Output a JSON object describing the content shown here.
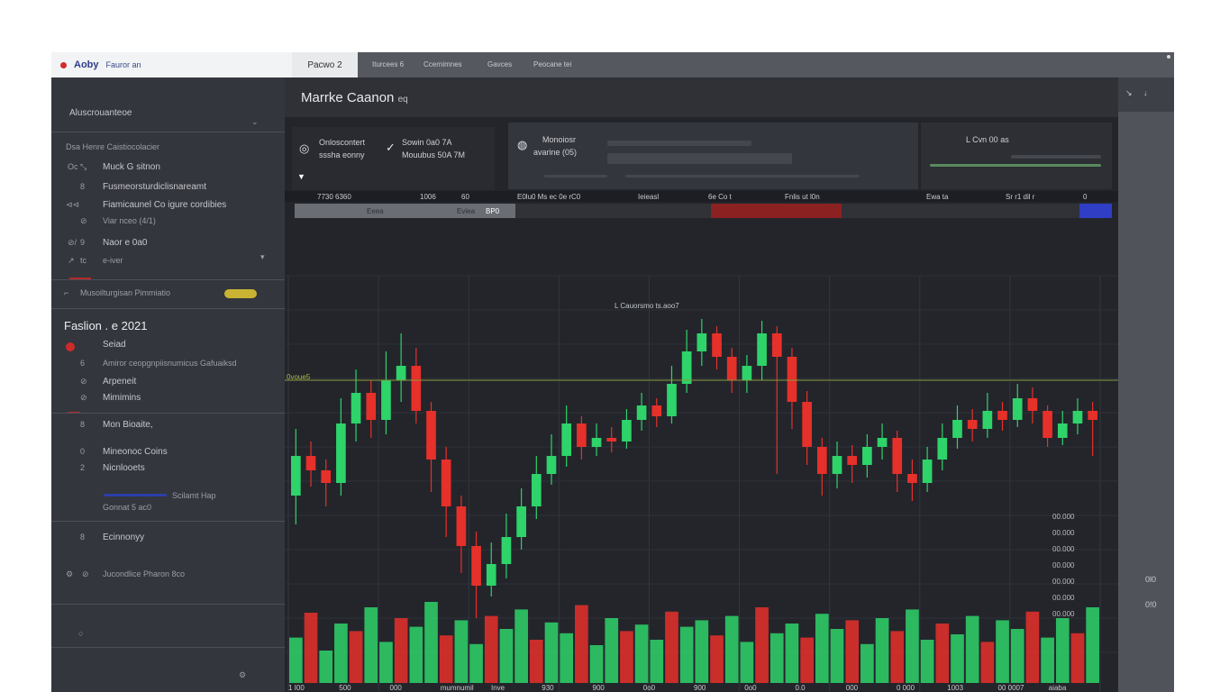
{
  "titlebar": {
    "app_name": "Aoby",
    "app_sub": "Fauror an",
    "active_tab": "Pacwo 2",
    "menu": [
      "Iturcees 6",
      "Ccernimnes",
      "Gavces",
      "Peocane tei"
    ]
  },
  "sidebar": {
    "header": "Aluscrouanteoe",
    "section1_title": "Dsa Henre Caistiocolacier",
    "items1": [
      {
        "num": "Oc",
        "glyph": "⤡",
        "label": "Muck  G  sitnon"
      },
      {
        "num": "8",
        "label": "Fusmeorsturdiclisnareamt"
      },
      {
        "num": "⊲⊲",
        "label": "Fiamicaunel Co igure cordibies"
      },
      {
        "num": "⊘",
        "label": "Viar nceo (4/1)"
      },
      {
        "num": "⊘/",
        "glyph": "9",
        "label": "Naor e  0a0"
      },
      {
        "num": "↗",
        "glyph": "tc",
        "label": "e-iver"
      }
    ],
    "toggle_label": "Musoilturgisan  Pimmiatio",
    "section2_title": "Faslion . e  2021",
    "items2": [
      {
        "num": "",
        "label": "Seiad"
      },
      {
        "num": "6",
        "label": "Amiror ceopgnpiisnumicus Gafuaiksd"
      },
      {
        "num": "⊘",
        "label": "Arpeneit"
      },
      {
        "num": "⊘",
        "label": "Mimimins"
      },
      {
        "num": "8",
        "label": "Mon Bioaite,"
      },
      {
        "num": "0",
        "label": "Mineonoc Coins"
      },
      {
        "num": "2",
        "label": "Nicnlooets"
      },
      {
        "num": "",
        "label": "Scilamt Hap"
      },
      {
        "num": "",
        "label": "Gonnat 5 ac0"
      },
      {
        "num": "8",
        "label": "Ecinnonyy"
      },
      {
        "num": "⊘",
        "label": "Jucondlice   Pharon 8co"
      }
    ]
  },
  "main": {
    "title": "Marrke  Caanon",
    "title_small": "eq",
    "info": {
      "l1": "Onloscontert",
      "l2": "Sowin 0a0 7A",
      "l3": "sssha  eonny",
      "l4": "Mouubus 50A 7M",
      "m1": "Monoiosr",
      "m2": "avarine (05)",
      "r1": "L  Cvn  00 as"
    },
    "ticker_a": [
      "7730 6360",
      "1006",
      "60",
      "E0lu0 Ms  ec  0e  rC0",
      "Ieieasl",
      "6e   Co  t",
      "Fnlis ut   l0n",
      "Ewa ta",
      "Sr r1 dil r",
      "0"
    ],
    "ticker_b": [
      "Eeea",
      "Eviea",
      "BP0"
    ],
    "chart_label": "L  Cauorsmo ts.aoo7",
    "price_marker": "0voue5",
    "price_ticks": [
      "00.000",
      "00.000",
      "00.000",
      "00.000",
      "00.000",
      "00.000",
      "00.000"
    ],
    "x_ticks": [
      "1 I00",
      "500",
      "000",
      "mumnumil",
      "Inve",
      "930",
      "900",
      "0o0",
      "900",
      "0o0",
      "0.0",
      "000",
      "0 000",
      "1003",
      "00  0007",
      "aiaba"
    ]
  },
  "right_panel": {
    "top_glyphs": [
      "↘",
      "↓"
    ],
    "labels": [
      "0l0",
      "0!0"
    ]
  },
  "colors": {
    "bull": "#2ed36a",
    "bear": "#e6302a",
    "background": "#23252b",
    "sidebar": "#34363d",
    "toggle": "#c8b333",
    "accent_blue": "#2f3ec5"
  },
  "chart_data": {
    "type": "candlestick",
    "title": "",
    "series": [
      {
        "o": 398,
        "c": 420,
        "h": 435,
        "l": 382
      },
      {
        "o": 420,
        "c": 412,
        "h": 428,
        "l": 403
      },
      {
        "o": 412,
        "c": 405,
        "h": 418,
        "l": 392
      },
      {
        "o": 405,
        "c": 438,
        "h": 452,
        "l": 398
      },
      {
        "o": 438,
        "c": 455,
        "h": 468,
        "l": 428
      },
      {
        "o": 455,
        "c": 440,
        "h": 462,
        "l": 430
      },
      {
        "o": 440,
        "c": 462,
        "h": 478,
        "l": 432
      },
      {
        "o": 462,
        "c": 470,
        "h": 488,
        "l": 450
      },
      {
        "o": 470,
        "c": 445,
        "h": 480,
        "l": 438
      },
      {
        "o": 445,
        "c": 418,
        "h": 450,
        "l": 400
      },
      {
        "o": 418,
        "c": 392,
        "h": 425,
        "l": 375
      },
      {
        "o": 392,
        "c": 370,
        "h": 398,
        "l": 355
      },
      {
        "o": 370,
        "c": 348,
        "h": 378,
        "l": 330
      },
      {
        "o": 348,
        "c": 360,
        "h": 372,
        "l": 342
      },
      {
        "o": 360,
        "c": 375,
        "h": 388,
        "l": 352
      },
      {
        "o": 375,
        "c": 392,
        "h": 402,
        "l": 368
      },
      {
        "o": 392,
        "c": 410,
        "h": 420,
        "l": 385
      },
      {
        "o": 410,
        "c": 420,
        "h": 432,
        "l": 404
      },
      {
        "o": 420,
        "c": 438,
        "h": 448,
        "l": 414
      },
      {
        "o": 438,
        "c": 425,
        "h": 442,
        "l": 418
      },
      {
        "o": 425,
        "c": 430,
        "h": 438,
        "l": 420
      },
      {
        "o": 430,
        "c": 428,
        "h": 436,
        "l": 422
      },
      {
        "o": 428,
        "c": 440,
        "h": 446,
        "l": 424
      },
      {
        "o": 440,
        "c": 448,
        "h": 455,
        "l": 434
      },
      {
        "o": 448,
        "c": 442,
        "h": 452,
        "l": 436
      },
      {
        "o": 442,
        "c": 460,
        "h": 470,
        "l": 438
      },
      {
        "o": 460,
        "c": 478,
        "h": 490,
        "l": 455
      },
      {
        "o": 478,
        "c": 488,
        "h": 496,
        "l": 470
      },
      {
        "o": 488,
        "c": 475,
        "h": 492,
        "l": 468
      },
      {
        "o": 475,
        "c": 462,
        "h": 480,
        "l": 455
      },
      {
        "o": 462,
        "c": 470,
        "h": 476,
        "l": 455
      },
      {
        "o": 470,
        "c": 488,
        "h": 495,
        "l": 462
      },
      {
        "o": 488,
        "c": 475,
        "h": 492,
        "l": 410
      },
      {
        "o": 475,
        "c": 450,
        "h": 480,
        "l": 435
      },
      {
        "o": 450,
        "c": 425,
        "h": 456,
        "l": 415
      },
      {
        "o": 425,
        "c": 410,
        "h": 430,
        "l": 398
      },
      {
        "o": 410,
        "c": 420,
        "h": 428,
        "l": 402
      },
      {
        "o": 420,
        "c": 415,
        "h": 426,
        "l": 405
      },
      {
        "o": 415,
        "c": 425,
        "h": 432,
        "l": 408
      },
      {
        "o": 425,
        "c": 430,
        "h": 438,
        "l": 418
      },
      {
        "o": 430,
        "c": 410,
        "h": 434,
        "l": 400
      },
      {
        "o": 410,
        "c": 405,
        "h": 418,
        "l": 395
      },
      {
        "o": 405,
        "c": 418,
        "h": 425,
        "l": 400
      },
      {
        "o": 418,
        "c": 430,
        "h": 438,
        "l": 412
      },
      {
        "o": 430,
        "c": 440,
        "h": 448,
        "l": 424
      },
      {
        "o": 440,
        "c": 435,
        "h": 446,
        "l": 428
      },
      {
        "o": 435,
        "c": 445,
        "h": 455,
        "l": 430
      },
      {
        "o": 445,
        "c": 440,
        "h": 450,
        "l": 434
      },
      {
        "o": 440,
        "c": 452,
        "h": 460,
        "l": 436
      },
      {
        "o": 452,
        "c": 445,
        "h": 458,
        "l": 438
      },
      {
        "o": 445,
        "c": 430,
        "h": 448,
        "l": 425
      },
      {
        "o": 430,
        "c": 438,
        "h": 445,
        "l": 426
      },
      {
        "o": 438,
        "c": 445,
        "h": 452,
        "l": 432
      },
      {
        "o": 445,
        "c": 440,
        "h": 450,
        "l": 420
      }
    ],
    "ylim": [
      330,
      500
    ],
    "volume": [
      42,
      65,
      30,
      55,
      48,
      70,
      38,
      60,
      52,
      75,
      44,
      58,
      36,
      62,
      50,
      68,
      40,
      56,
      46,
      72,
      35,
      60,
      48,
      54,
      40,
      66,
      52,
      58,
      44,
      62,
      38,
      70,
      46,
      55,
      42,
      64,
      50,
      58,
      36,
      60,
      48,
      68,
      40,
      55,
      45,
      62,
      38,
      58,
      50,
      66,
      42,
      60,
      46,
      70
    ]
  }
}
